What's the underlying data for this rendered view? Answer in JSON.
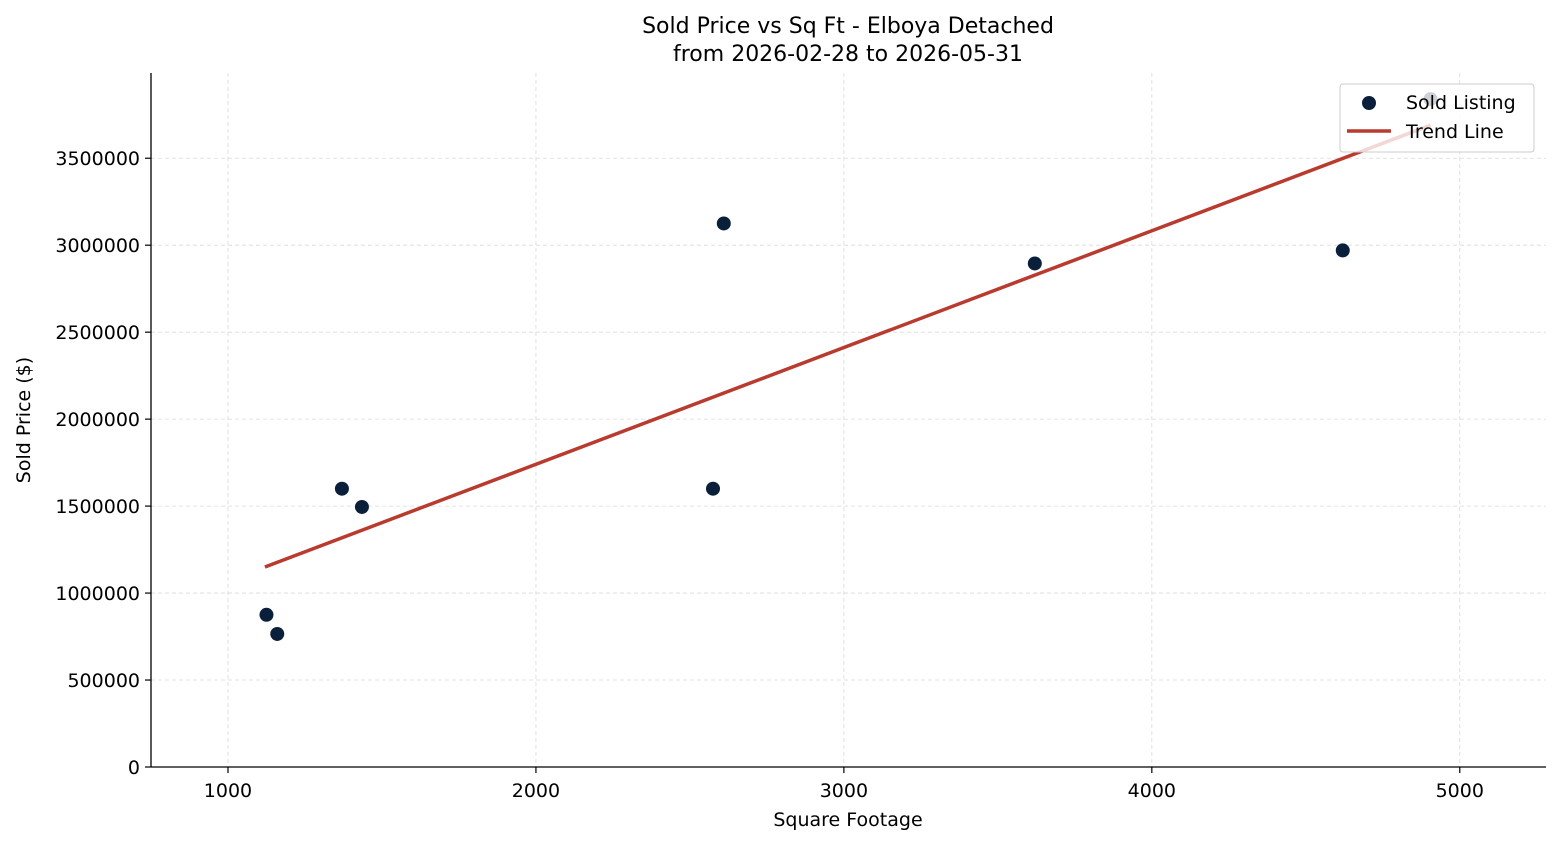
{
  "chart_data": {
    "type": "scatter",
    "title_line1": "Sold Price vs Sq Ft - Elboya Detached",
    "title_line2": "from 2026-02-28 to 2026-05-31",
    "xlabel": "Square Footage",
    "ylabel": "Sold Price ($)",
    "xlim": [
      750,
      5280
    ],
    "ylim": [
      0,
      3990000
    ],
    "x_ticks": [
      1000,
      2000,
      3000,
      4000,
      5000
    ],
    "y_ticks": [
      0,
      500000,
      1000000,
      1500000,
      2000000,
      2500000,
      3000000,
      3500000
    ],
    "grid": true,
    "legend_position": "top-right",
    "series": [
      {
        "name": "Sold Listing",
        "kind": "scatter",
        "color": "#0a1f3a",
        "points": [
          {
            "x": 1125,
            "y": 875000
          },
          {
            "x": 1160,
            "y": 765000
          },
          {
            "x": 1370,
            "y": 1600000
          },
          {
            "x": 1435,
            "y": 1495000
          },
          {
            "x": 2575,
            "y": 1600000
          },
          {
            "x": 2610,
            "y": 3125000
          },
          {
            "x": 3620,
            "y": 2895000
          },
          {
            "x": 4620,
            "y": 2970000
          },
          {
            "x": 4905,
            "y": 3840000
          }
        ]
      },
      {
        "name": "Trend Line",
        "kind": "line",
        "color": "#b93a2e",
        "points": [
          {
            "x": 1120,
            "y": 1150000
          },
          {
            "x": 4905,
            "y": 3690000
          }
        ]
      }
    ]
  }
}
